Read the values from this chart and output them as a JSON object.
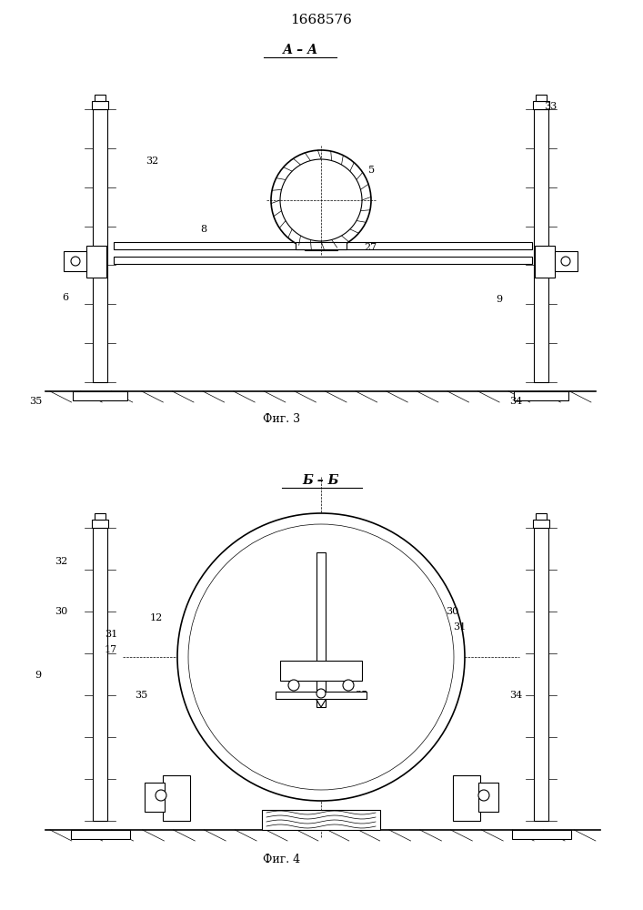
{
  "title": "1668576",
  "title_fontsize": 11,
  "fig1_label": "А – А",
  "fig1_caption": "Фиг. 3",
  "fig2_label": "Б – Б",
  "fig2_caption": "Фиг. 4",
  "bg_color": "#ffffff",
  "line_color": "#000000",
  "lw": 0.8,
  "lw_thick": 1.2,
  "lw_thin": 0.5
}
